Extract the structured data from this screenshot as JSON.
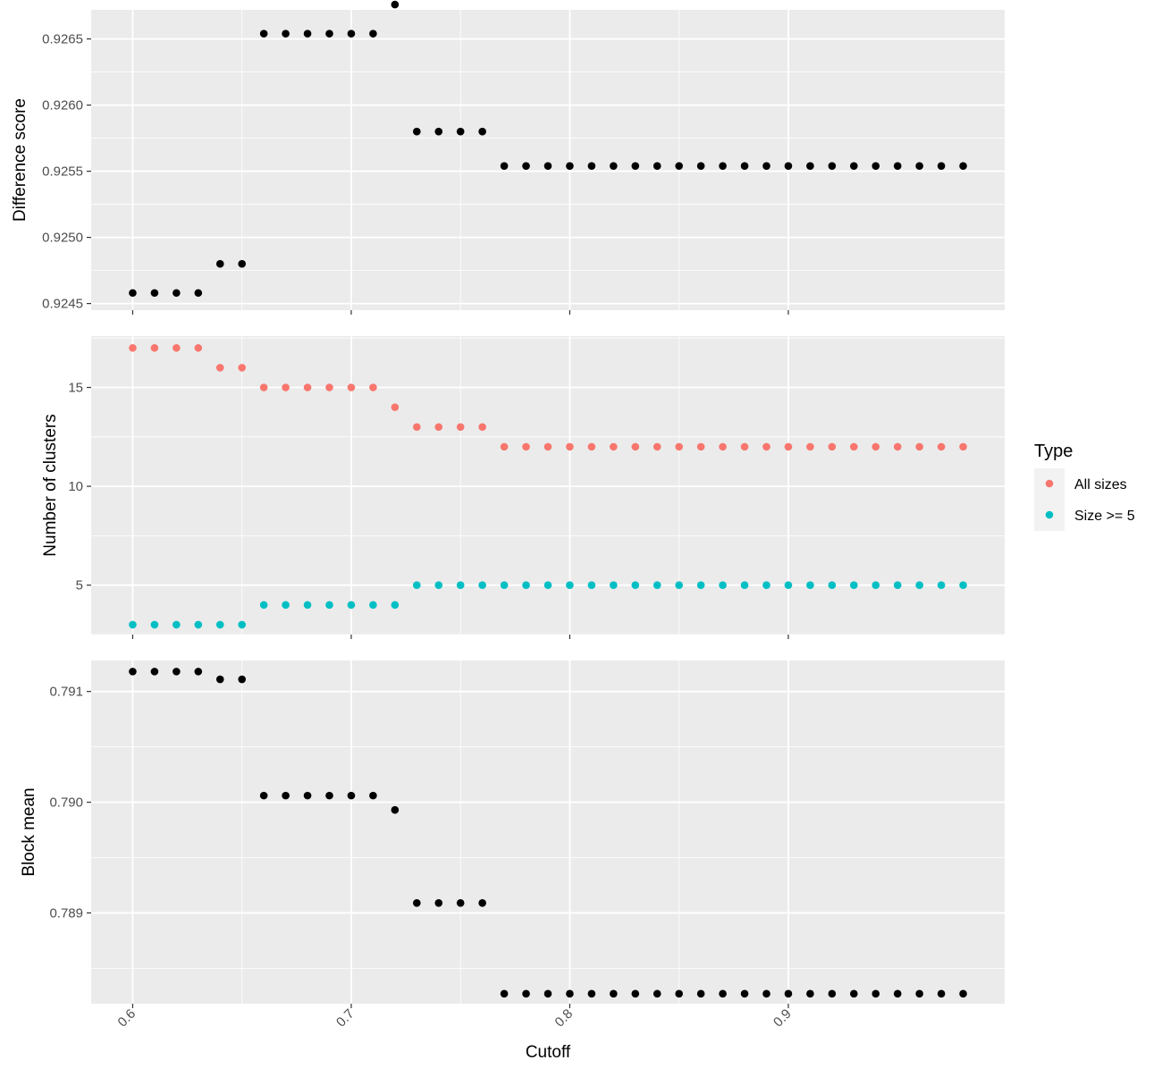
{
  "chart_data": [
    {
      "type": "scatter",
      "ylabel": "Difference score",
      "yticks": [
        0.9245,
        0.925,
        0.9255,
        0.926,
        0.9265
      ],
      "ytick_labels": [
        "0.9245",
        "0.9250",
        "0.9255",
        "0.9260",
        "0.9265"
      ],
      "ylim": [
        0.92445,
        0.92672
      ],
      "series": [
        {
          "color": "#000000",
          "points": [
            [
              0.6,
              0.92458
            ],
            [
              0.61,
              0.92458
            ],
            [
              0.62,
              0.92458
            ],
            [
              0.63,
              0.92458
            ],
            [
              0.64,
              0.9248
            ],
            [
              0.65,
              0.9248
            ],
            [
              0.66,
              0.92654
            ],
            [
              0.67,
              0.92654
            ],
            [
              0.68,
              0.92654
            ],
            [
              0.69,
              0.92654
            ],
            [
              0.7,
              0.92654
            ],
            [
              0.71,
              0.92654
            ],
            [
              0.72,
              0.92676
            ],
            [
              0.73,
              0.9258
            ],
            [
              0.74,
              0.9258
            ],
            [
              0.75,
              0.9258
            ],
            [
              0.76,
              0.9258
            ],
            [
              0.77,
              0.92554
            ],
            [
              0.78,
              0.92554
            ],
            [
              0.79,
              0.92554
            ],
            [
              0.8,
              0.92554
            ],
            [
              0.81,
              0.92554
            ],
            [
              0.82,
              0.92554
            ],
            [
              0.83,
              0.92554
            ],
            [
              0.84,
              0.92554
            ],
            [
              0.85,
              0.92554
            ],
            [
              0.86,
              0.92554
            ],
            [
              0.87,
              0.92554
            ],
            [
              0.88,
              0.92554
            ],
            [
              0.89,
              0.92554
            ],
            [
              0.9,
              0.92554
            ],
            [
              0.91,
              0.92554
            ],
            [
              0.92,
              0.92554
            ],
            [
              0.93,
              0.92554
            ],
            [
              0.94,
              0.92554
            ],
            [
              0.95,
              0.92554
            ],
            [
              0.96,
              0.92554
            ],
            [
              0.97,
              0.92554
            ],
            [
              0.98,
              0.92554
            ]
          ]
        }
      ]
    },
    {
      "type": "scatter",
      "ylabel": "Number of clusters",
      "yticks": [
        5,
        10,
        15
      ],
      "ytick_labels": [
        "5",
        "10",
        "15"
      ],
      "ylim": [
        2.5,
        17.6
      ],
      "series": [
        {
          "name": "All sizes",
          "color": "#F8766D",
          "points": [
            [
              0.6,
              17
            ],
            [
              0.61,
              17
            ],
            [
              0.62,
              17
            ],
            [
              0.63,
              17
            ],
            [
              0.64,
              16
            ],
            [
              0.65,
              16
            ],
            [
              0.66,
              15
            ],
            [
              0.67,
              15
            ],
            [
              0.68,
              15
            ],
            [
              0.69,
              15
            ],
            [
              0.7,
              15
            ],
            [
              0.71,
              15
            ],
            [
              0.72,
              14
            ],
            [
              0.73,
              13
            ],
            [
              0.74,
              13
            ],
            [
              0.75,
              13
            ],
            [
              0.76,
              13
            ],
            [
              0.77,
              12
            ],
            [
              0.78,
              12
            ],
            [
              0.79,
              12
            ],
            [
              0.8,
              12
            ],
            [
              0.81,
              12
            ],
            [
              0.82,
              12
            ],
            [
              0.83,
              12
            ],
            [
              0.84,
              12
            ],
            [
              0.85,
              12
            ],
            [
              0.86,
              12
            ],
            [
              0.87,
              12
            ],
            [
              0.88,
              12
            ],
            [
              0.89,
              12
            ],
            [
              0.9,
              12
            ],
            [
              0.91,
              12
            ],
            [
              0.92,
              12
            ],
            [
              0.93,
              12
            ],
            [
              0.94,
              12
            ],
            [
              0.95,
              12
            ],
            [
              0.96,
              12
            ],
            [
              0.97,
              12
            ],
            [
              0.98,
              12
            ]
          ]
        },
        {
          "name": "Size >= 5",
          "color": "#00BFC4",
          "points": [
            [
              0.6,
              3
            ],
            [
              0.61,
              3
            ],
            [
              0.62,
              3
            ],
            [
              0.63,
              3
            ],
            [
              0.64,
              3
            ],
            [
              0.65,
              3
            ],
            [
              0.66,
              4
            ],
            [
              0.67,
              4
            ],
            [
              0.68,
              4
            ],
            [
              0.69,
              4
            ],
            [
              0.7,
              4
            ],
            [
              0.71,
              4
            ],
            [
              0.72,
              4
            ],
            [
              0.73,
              5
            ],
            [
              0.74,
              5
            ],
            [
              0.75,
              5
            ],
            [
              0.76,
              5
            ],
            [
              0.77,
              5
            ],
            [
              0.78,
              5
            ],
            [
              0.79,
              5
            ],
            [
              0.8,
              5
            ],
            [
              0.81,
              5
            ],
            [
              0.82,
              5
            ],
            [
              0.83,
              5
            ],
            [
              0.84,
              5
            ],
            [
              0.85,
              5
            ],
            [
              0.86,
              5
            ],
            [
              0.87,
              5
            ],
            [
              0.88,
              5
            ],
            [
              0.89,
              5
            ],
            [
              0.9,
              5
            ],
            [
              0.91,
              5
            ],
            [
              0.92,
              5
            ],
            [
              0.93,
              5
            ],
            [
              0.94,
              5
            ],
            [
              0.95,
              5
            ],
            [
              0.96,
              5
            ],
            [
              0.97,
              5
            ],
            [
              0.98,
              5
            ]
          ]
        }
      ]
    },
    {
      "type": "scatter",
      "ylabel": "Block mean",
      "yticks": [
        0.789,
        0.79,
        0.791
      ],
      "ytick_labels": [
        "0.789",
        "0.790",
        "0.791"
      ],
      "ylim": [
        0.78818,
        0.79128
      ],
      "series": [
        {
          "color": "#000000",
          "points": [
            [
              0.6,
              0.79118
            ],
            [
              0.61,
              0.79118
            ],
            [
              0.62,
              0.79118
            ],
            [
              0.63,
              0.79118
            ],
            [
              0.64,
              0.79111
            ],
            [
              0.65,
              0.79111
            ],
            [
              0.66,
              0.79006
            ],
            [
              0.67,
              0.79006
            ],
            [
              0.68,
              0.79006
            ],
            [
              0.69,
              0.79006
            ],
            [
              0.7,
              0.79006
            ],
            [
              0.71,
              0.79006
            ],
            [
              0.72,
              0.78993
            ],
            [
              0.73,
              0.78909
            ],
            [
              0.74,
              0.78909
            ],
            [
              0.75,
              0.78909
            ],
            [
              0.76,
              0.78909
            ],
            [
              0.77,
              0.78827
            ],
            [
              0.78,
              0.78827
            ],
            [
              0.79,
              0.78827
            ],
            [
              0.8,
              0.78827
            ],
            [
              0.81,
              0.78827
            ],
            [
              0.82,
              0.78827
            ],
            [
              0.83,
              0.78827
            ],
            [
              0.84,
              0.78827
            ],
            [
              0.85,
              0.78827
            ],
            [
              0.86,
              0.78827
            ],
            [
              0.87,
              0.78827
            ],
            [
              0.88,
              0.78827
            ],
            [
              0.89,
              0.78827
            ],
            [
              0.9,
              0.78827
            ],
            [
              0.91,
              0.78827
            ],
            [
              0.92,
              0.78827
            ],
            [
              0.93,
              0.78827
            ],
            [
              0.94,
              0.78827
            ],
            [
              0.95,
              0.78827
            ],
            [
              0.96,
              0.78827
            ],
            [
              0.97,
              0.78827
            ],
            [
              0.98,
              0.78827
            ]
          ]
        }
      ]
    }
  ],
  "x_axis": {
    "label": "Cutoff",
    "xlim": [
      0.581,
      0.999
    ],
    "ticks": [
      0.6,
      0.7,
      0.8,
      0.9
    ],
    "tick_labels": [
      "0.6",
      "0.7",
      "0.8",
      "0.9"
    ],
    "tick_label_rotation_deg": -45
  },
  "legend": {
    "title": "Type",
    "placement": "right",
    "entries": [
      {
        "label": "All sizes",
        "color": "#F8766D"
      },
      {
        "label": "Size >= 5",
        "color": "#00BFC4"
      }
    ]
  },
  "style": {
    "panel_background": "#EBEBEB",
    "grid_color": "#FFFFFF",
    "grid": true
  }
}
